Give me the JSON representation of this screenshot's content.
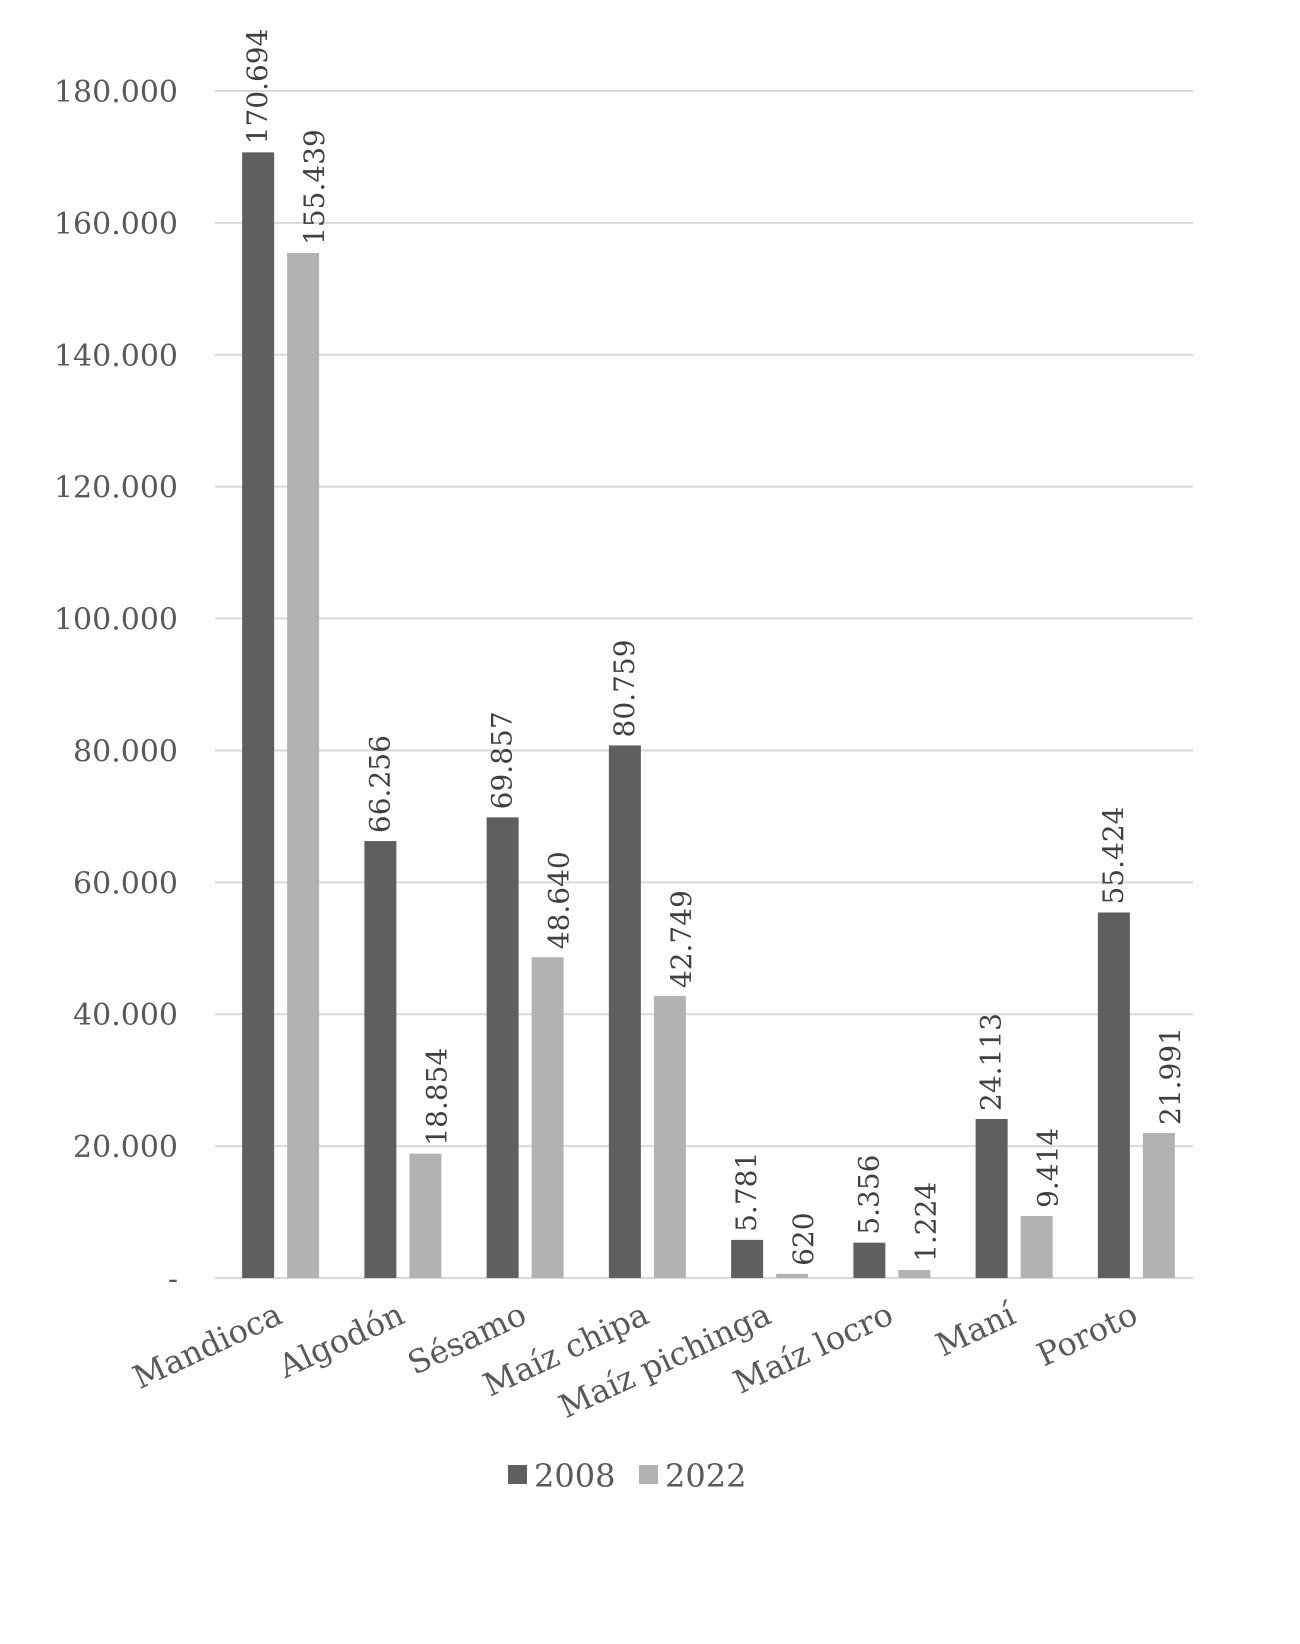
{
  "chart_data": {
    "type": "bar",
    "title": "",
    "xlabel": "",
    "ylabel": "",
    "ylim": [
      0,
      180000
    ],
    "y_ticks": [
      0,
      20000,
      40000,
      60000,
      80000,
      100000,
      120000,
      140000,
      160000,
      180000
    ],
    "y_tick_labels": [
      "-",
      "20.000",
      "40.000",
      "60.000",
      "80.000",
      "100.000",
      "120.000",
      "140.000",
      "160.000",
      "180.000"
    ],
    "grid": true,
    "legend_position": "bottom",
    "categories": [
      "Mandioca",
      "Algodón",
      "Sésamo",
      "Maíz chipa",
      "Maíz pichinga",
      "Maíz locro",
      "Maní",
      "Poroto"
    ],
    "series": [
      {
        "name": "2008",
        "color": "#5f5f5f",
        "values": [
          170694,
          66256,
          69857,
          80759,
          5781,
          5356,
          24113,
          55424
        ],
        "labels": [
          "170.694",
          "66.256",
          "69.857",
          "80.759",
          "5.781",
          "5.356",
          "24.113",
          "55.424"
        ]
      },
      {
        "name": "2022",
        "color": "#b2b2b2",
        "values": [
          155439,
          18854,
          48640,
          42749,
          620,
          1224,
          9414,
          21991
        ],
        "labels": [
          "155.439",
          "18.854",
          "48.640",
          "42.749",
          "620",
          "1.224",
          "9.414",
          "21.991"
        ]
      }
    ]
  }
}
